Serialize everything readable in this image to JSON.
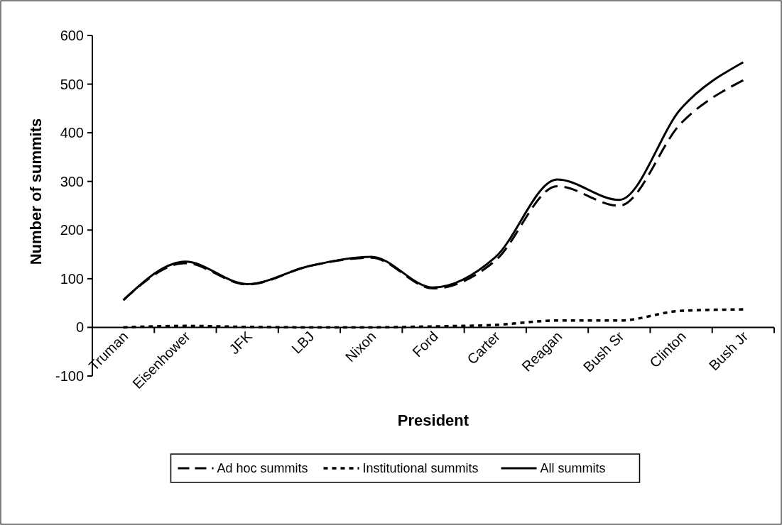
{
  "chart_data": {
    "type": "line",
    "xlabel": "President",
    "ylabel": "Number of summits",
    "categories": [
      "Truman",
      "Eisenhower",
      "JFK",
      "LBJ",
      "Nixon",
      "Ford",
      "Carter",
      "Reagan",
      "Bush Sr",
      "Clinton",
      "Bush Jr"
    ],
    "ylim": [
      -100,
      600
    ],
    "yticks": [
      -100,
      0,
      100,
      200,
      300,
      400,
      500,
      600
    ],
    "legend": "bottom",
    "marker": "none",
    "series": [
      {
        "name": "Ad hoc summits",
        "color": "#000000",
        "line_style": "dashed",
        "values": [
          56,
          132,
          88,
          126,
          143,
          80,
          137,
          290,
          250,
          420,
          508
        ]
      },
      {
        "name": "Institutional summits",
        "color": "#000000",
        "line_style": "dotted",
        "values": [
          0,
          3,
          1,
          0,
          0,
          2,
          5,
          14,
          14,
          34,
          37
        ]
      },
      {
        "name": "All summits",
        "color": "#000000",
        "line_style": "solid",
        "values": [
          56,
          135,
          89,
          126,
          145,
          82,
          144,
          304,
          262,
          450,
          545
        ]
      }
    ]
  }
}
